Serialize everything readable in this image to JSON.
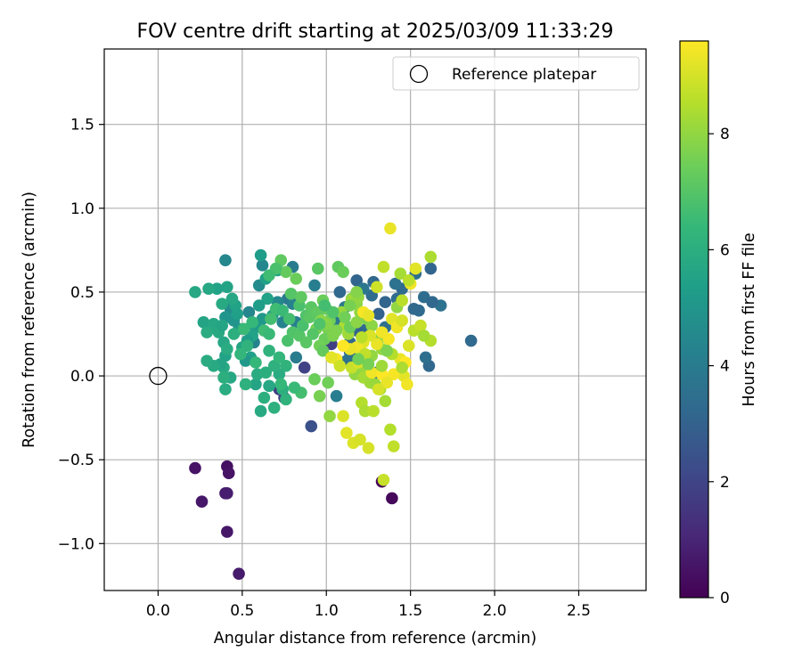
{
  "chart_data": {
    "type": "scatter",
    "title": "FOV centre drift starting at 2025/03/09 11:33:29",
    "xlabel": "Angular distance from reference (arcmin)",
    "ylabel": "Rotation from reference (arcmin)",
    "xlim": [
      -0.32,
      2.9
    ],
    "ylim": [
      -1.28,
      1.95
    ],
    "xticks": [
      0.0,
      0.5,
      1.0,
      1.5,
      2.0,
      2.5
    ],
    "xtick_labels": [
      "0.0",
      "0.5",
      "1.0",
      "1.5",
      "2.0",
      "2.5"
    ],
    "yticks": [
      -1.0,
      -0.5,
      0.0,
      0.5,
      1.0,
      1.5
    ],
    "ytick_labels": [
      "−1.0",
      "−0.5",
      "0.0",
      "0.5",
      "1.0",
      "1.5"
    ],
    "grid": true,
    "legend": {
      "position": "top-right",
      "entries": [
        {
          "label": "Reference platepar",
          "marker": "open-circle"
        }
      ]
    },
    "reference_point": {
      "x": 0.0,
      "y": 0.0
    },
    "colorbar": {
      "label": "Hours from first FF file",
      "colormap": "viridis",
      "range": [
        0,
        9.6
      ],
      "ticks": [
        0,
        2,
        4,
        6,
        8
      ],
      "tick_labels": [
        "0",
        "2",
        "4",
        "6",
        "8"
      ]
    },
    "colormap_stops": [
      "#440154",
      "#482878",
      "#3e4989",
      "#31688e",
      "#26828e",
      "#1f9e89",
      "#35b779",
      "#6ece58",
      "#b5de2b",
      "#fde725"
    ],
    "points": [
      [
        0.22,
        -0.55,
        0.5
      ],
      [
        0.26,
        -0.75,
        0.6
      ],
      [
        0.41,
        -0.54,
        0.4
      ],
      [
        0.42,
        -0.58,
        0.5
      ],
      [
        0.4,
        -0.7,
        0.7
      ],
      [
        0.41,
        -0.7,
        0.8
      ],
      [
        0.41,
        -0.93,
        0.6
      ],
      [
        0.48,
        -1.18,
        0.7
      ],
      [
        1.33,
        -0.63,
        0.1
      ],
      [
        1.39,
        -0.73,
        0.2
      ],
      [
        0.91,
        -0.3,
        2.4
      ],
      [
        0.87,
        0.05,
        1.9
      ],
      [
        0.72,
        -0.08,
        1.7
      ],
      [
        0.75,
        -0.13,
        1.8
      ],
      [
        1.03,
        0.19,
        1.8
      ],
      [
        1.86,
        0.21,
        3.3
      ],
      [
        1.68,
        0.42,
        3.6
      ],
      [
        1.62,
        0.64,
        3.1
      ],
      [
        1.61,
        0.06,
        3.2
      ],
      [
        1.59,
        0.11,
        3.5
      ],
      [
        1.55,
        0.39,
        3.3
      ],
      [
        1.52,
        0.4,
        3.2
      ],
      [
        1.58,
        0.47,
        3.4
      ],
      [
        1.63,
        0.44,
        3.2
      ],
      [
        1.53,
        0.61,
        3.5
      ],
      [
        1.45,
        0.52,
        3.3
      ],
      [
        1.41,
        0.55,
        3.6
      ],
      [
        1.42,
        0.46,
        3.4
      ],
      [
        1.35,
        0.44,
        3.1
      ],
      [
        1.31,
        0.37,
        3.0
      ],
      [
        1.28,
        0.56,
        3.2
      ],
      [
        1.27,
        0.48,
        3.4
      ],
      [
        1.18,
        0.57,
        3.1
      ],
      [
        1.22,
        0.52,
        3.8
      ],
      [
        1.24,
        0.28,
        3.3
      ],
      [
        1.18,
        0.27,
        3.1
      ],
      [
        1.08,
        0.5,
        3.2
      ],
      [
        1.11,
        0.41,
        3.9
      ],
      [
        1.05,
        0.33,
        3.8
      ],
      [
        1.35,
        0.29,
        3.5
      ],
      [
        1.3,
        0.02,
        3.2
      ],
      [
        1.18,
        0.1,
        3.4
      ],
      [
        1.14,
        0.14,
        3.3
      ],
      [
        1.14,
        0.2,
        3.2
      ],
      [
        1.12,
        0.09,
        3.6
      ],
      [
        1.06,
        -0.12,
        4.1
      ],
      [
        0.93,
        0.54,
        4.1
      ],
      [
        0.8,
        0.65,
        4.0
      ],
      [
        0.77,
        0.46,
        3.9
      ],
      [
        0.8,
        0.43,
        4.2
      ],
      [
        0.82,
        0.32,
        4.1
      ],
      [
        0.82,
        0.11,
        4.0
      ],
      [
        0.74,
        0.32,
        4.3
      ],
      [
        0.71,
        0.44,
        4.5
      ],
      [
        0.62,
        0.66,
        4.4
      ],
      [
        0.6,
        0.54,
        4.6
      ],
      [
        0.57,
        0.31,
        4.7
      ],
      [
        0.57,
        0.2,
        4.3
      ],
      [
        0.54,
        0.38,
        4.4
      ],
      [
        0.4,
        0.69,
        4.5
      ],
      [
        0.43,
        0.4,
        4.6
      ],
      [
        0.4,
        0.35,
        5.0
      ],
      [
        0.61,
        0.72,
        5.3
      ],
      [
        0.64,
        0.58,
        5.4
      ],
      [
        0.71,
        0.63,
        5.6
      ],
      [
        0.68,
        0.36,
        5.2
      ],
      [
        0.65,
        0.46,
        5.5
      ],
      [
        0.62,
        0.34,
        5.1
      ],
      [
        0.6,
        0.42,
        5.3
      ],
      [
        0.58,
        0.29,
        5.2
      ],
      [
        0.56,
        0.24,
        5.5
      ],
      [
        0.53,
        0.21,
        5.3
      ],
      [
        0.55,
        0.11,
        5.4
      ],
      [
        0.52,
        0.09,
        5.1
      ],
      [
        0.5,
        0.17,
        5.6
      ],
      [
        0.48,
        0.28,
        5.2
      ],
      [
        0.45,
        0.33,
        5.0
      ],
      [
        0.47,
        0.37,
        5.4
      ],
      [
        0.46,
        0.42,
        5.5
      ],
      [
        0.44,
        0.46,
        5.7
      ],
      [
        0.41,
        0.53,
        5.6
      ],
      [
        0.38,
        0.43,
        5.8
      ],
      [
        0.35,
        0.52,
        5.5
      ],
      [
        0.3,
        0.52,
        5.7
      ],
      [
        0.27,
        0.32,
        5.6
      ],
      [
        0.31,
        0.29,
        5.5
      ],
      [
        0.33,
        0.31,
        5.7
      ],
      [
        0.36,
        0.26,
        5.8
      ],
      [
        0.29,
        0.26,
        5.9
      ],
      [
        0.38,
        0.3,
        5.6
      ],
      [
        0.39,
        0.2,
        5.7
      ],
      [
        0.4,
        0.12,
        5.5
      ],
      [
        0.39,
        0.05,
        5.8
      ],
      [
        0.41,
        0.16,
        5.9
      ],
      [
        0.45,
        0.25,
        6.0
      ],
      [
        0.43,
        -0.01,
        5.7
      ],
      [
        0.4,
        -0.08,
        5.9
      ],
      [
        0.39,
        -0.01,
        6.0
      ],
      [
        0.37,
        0.07,
        5.6
      ],
      [
        0.33,
        0.06,
        5.8
      ],
      [
        0.29,
        0.09,
        5.9
      ],
      [
        0.22,
        0.5,
        5.7
      ],
      [
        0.58,
        -0.05,
        5.6
      ],
      [
        0.61,
        -0.21,
        5.8
      ],
      [
        0.63,
        -0.13,
        6.0
      ],
      [
        0.66,
        -0.06,
        5.7
      ],
      [
        0.69,
        -0.19,
        6.1
      ],
      [
        0.72,
        0.01,
        5.9
      ],
      [
        0.74,
        -0.08,
        6.0
      ],
      [
        0.76,
        0.06,
        6.2
      ],
      [
        0.52,
        -0.05,
        6.1
      ],
      [
        0.59,
        0.01,
        5.9
      ],
      [
        0.64,
        0.02,
        6.0
      ],
      [
        0.66,
        0.15,
        6.2
      ],
      [
        0.69,
        0.06,
        6.1
      ],
      [
        0.72,
        0.11,
        6.3
      ],
      [
        0.58,
        0.08,
        6.4
      ],
      [
        0.53,
        0.18,
        6.2
      ],
      [
        0.49,
        0.13,
        6.3
      ],
      [
        0.51,
        0.28,
        6.5
      ],
      [
        0.56,
        0.32,
        6.4
      ],
      [
        0.63,
        0.27,
        6.6
      ],
      [
        0.66,
        0.25,
        6.5
      ],
      [
        0.67,
        0.34,
        6.7
      ],
      [
        0.7,
        0.4,
        6.6
      ],
      [
        0.74,
        0.39,
        6.5
      ],
      [
        0.77,
        0.21,
        6.8
      ],
      [
        0.78,
        0.34,
        6.7
      ],
      [
        0.8,
        0.26,
        6.9
      ],
      [
        0.84,
        0.24,
        7.0
      ],
      [
        0.86,
        0.3,
        6.8
      ],
      [
        0.88,
        0.36,
        6.9
      ],
      [
        0.9,
        0.35,
        7.1
      ],
      [
        0.84,
        0.42,
        6.8
      ],
      [
        0.79,
        0.49,
        7.0
      ],
      [
        0.85,
        0.47,
        7.2
      ],
      [
        0.91,
        0.41,
        7.1
      ],
      [
        0.95,
        0.38,
        7.2
      ],
      [
        0.98,
        0.45,
        7.4
      ],
      [
        1.0,
        0.4,
        7.3
      ],
      [
        1.02,
        0.33,
        7.5
      ],
      [
        1.01,
        0.28,
        7.6
      ],
      [
        0.99,
        0.22,
        7.4
      ],
      [
        0.96,
        0.18,
        7.5
      ],
      [
        0.98,
        0.15,
        7.3
      ],
      [
        1.04,
        0.24,
        7.7
      ],
      [
        0.95,
        0.64,
        7.1
      ],
      [
        1.07,
        0.65,
        7.2
      ],
      [
        1.1,
        0.62,
        7.4
      ],
      [
        1.15,
        0.46,
        7.8
      ],
      [
        1.18,
        0.43,
        7.9
      ],
      [
        1.2,
        0.38,
        8.0
      ],
      [
        1.24,
        0.34,
        7.7
      ],
      [
        1.27,
        0.3,
        7.9
      ],
      [
        1.31,
        0.22,
        7.8
      ],
      [
        1.33,
        0.16,
        8.1
      ],
      [
        1.27,
        0.12,
        8.0
      ],
      [
        1.24,
        0.06,
        8.2
      ],
      [
        1.2,
        0.03,
        8.1
      ],
      [
        1.17,
        0.01,
        8.0
      ],
      [
        1.22,
        -0.01,
        8.3
      ],
      [
        1.26,
        -0.04,
        8.2
      ],
      [
        1.29,
        -0.05,
        8.1
      ],
      [
        1.32,
        -0.08,
        8.4
      ],
      [
        1.35,
        -0.15,
        8.3
      ],
      [
        1.21,
        -0.16,
        8.5
      ],
      [
        1.23,
        -0.21,
        8.4
      ],
      [
        1.28,
        -0.21,
        8.6
      ],
      [
        1.38,
        -0.32,
        8.5
      ],
      [
        1.4,
        -0.42,
        8.7
      ],
      [
        1.34,
        -0.62,
        8.8
      ],
      [
        1.25,
        -0.43,
        9.0
      ],
      [
        1.16,
        -0.4,
        9.1
      ],
      [
        1.2,
        -0.38,
        9.0
      ],
      [
        1.12,
        -0.34,
        9.2
      ],
      [
        1.1,
        -0.24,
        9.1
      ],
      [
        1.02,
        -0.24,
        8.0
      ],
      [
        0.96,
        -0.12,
        7.6
      ],
      [
        0.93,
        -0.02,
        7.4
      ],
      [
        1.01,
        -0.04,
        7.5
      ],
      [
        0.73,
        -0.05,
        6.4
      ],
      [
        0.85,
        -0.1,
        6.7
      ],
      [
        0.81,
        -0.07,
        6.5
      ],
      [
        0.76,
        -0.14,
        6.2
      ],
      [
        1.44,
        0.61,
        8.3
      ],
      [
        1.53,
        0.64,
        9.2
      ],
      [
        1.62,
        0.71,
        8.4
      ],
      [
        1.5,
        0.55,
        9.4
      ],
      [
        1.49,
        0.57,
        8.6
      ],
      [
        1.38,
        0.88,
        9.3
      ],
      [
        1.34,
        0.65,
        8.7
      ],
      [
        1.3,
        0.53,
        8.9
      ],
      [
        1.22,
        0.38,
        9.5
      ],
      [
        1.15,
        0.45,
        8.2
      ],
      [
        1.19,
        0.47,
        8.0
      ],
      [
        1.25,
        0.36,
        9.3
      ],
      [
        1.39,
        0.34,
        9.2
      ],
      [
        1.42,
        0.29,
        9.4
      ],
      [
        1.45,
        0.33,
        9.0
      ],
      [
        1.52,
        0.27,
        8.6
      ],
      [
        1.56,
        0.3,
        8.8
      ],
      [
        1.62,
        0.21,
        8.5
      ],
      [
        1.58,
        0.24,
        8.3
      ],
      [
        1.49,
        0.18,
        9.1
      ],
      [
        1.44,
        0.1,
        9.3
      ],
      [
        1.47,
        0.08,
        9.6
      ],
      [
        1.46,
        0.0,
        9.2
      ],
      [
        1.48,
        -0.05,
        9.4
      ],
      [
        1.4,
        0.01,
        9.5
      ],
      [
        1.37,
        0.22,
        9.5
      ],
      [
        1.33,
        0.26,
        9.4
      ],
      [
        1.3,
        0.19,
        9.3
      ],
      [
        1.26,
        0.24,
        9.1
      ],
      [
        1.22,
        0.2,
        9.2
      ],
      [
        1.18,
        0.17,
        9.4
      ],
      [
        1.14,
        0.16,
        9.3
      ],
      [
        1.1,
        0.18,
        9.6
      ],
      [
        1.06,
        0.1,
        9.5
      ],
      [
        1.03,
        0.11,
        9.2
      ],
      [
        1.08,
        0.06,
        8.9
      ],
      [
        1.15,
        0.05,
        8.8
      ],
      [
        1.19,
        0.08,
        9.0
      ],
      [
        1.23,
        0.13,
        8.7
      ],
      [
        1.27,
        0.02,
        9.4
      ],
      [
        1.33,
        0.01,
        9.6
      ],
      [
        1.36,
        -0.04,
        9.3
      ],
      [
        1.31,
        -0.08,
        9.0
      ],
      [
        1.45,
        0.05,
        8.4
      ],
      [
        1.39,
        0.13,
        8.5
      ],
      [
        1.42,
        0.41,
        8.0
      ],
      [
        1.45,
        0.45,
        8.6
      ],
      [
        1.21,
        0.23,
        8.6
      ],
      [
        1.13,
        0.25,
        8.2
      ],
      [
        1.11,
        0.3,
        8.4
      ],
      [
        1.09,
        0.38,
        8.1
      ],
      [
        1.0,
        0.31,
        7.8
      ],
      [
        0.97,
        0.33,
        7.9
      ],
      [
        0.94,
        0.28,
        7.6
      ],
      [
        1.06,
        0.27,
        7.7
      ],
      [
        1.11,
        0.35,
        7.5
      ],
      [
        1.14,
        0.29,
        7.4
      ],
      [
        1.18,
        0.32,
        7.9
      ],
      [
        1.14,
        0.42,
        7.6
      ],
      [
        1.18,
        0.5,
        7.8
      ],
      [
        1.36,
        0.15,
        7.7
      ],
      [
        1.33,
        0.06,
        8.2
      ],
      [
        1.25,
        0.07,
        7.6
      ],
      [
        1.19,
        0.1,
        7.5
      ],
      [
        1.04,
        0.38,
        6.9
      ],
      [
        0.99,
        0.42,
        6.7
      ],
      [
        0.96,
        0.31,
        6.9
      ],
      [
        0.92,
        0.25,
        7.0
      ],
      [
        0.88,
        0.2,
        7.1
      ],
      [
        0.73,
        0.69,
        7.2
      ],
      [
        0.76,
        0.62,
        7.3
      ],
      [
        0.82,
        0.58,
        7.4
      ],
      [
        0.7,
        0.64,
        6.8
      ],
      [
        0.66,
        0.6,
        6.6
      ]
    ]
  }
}
